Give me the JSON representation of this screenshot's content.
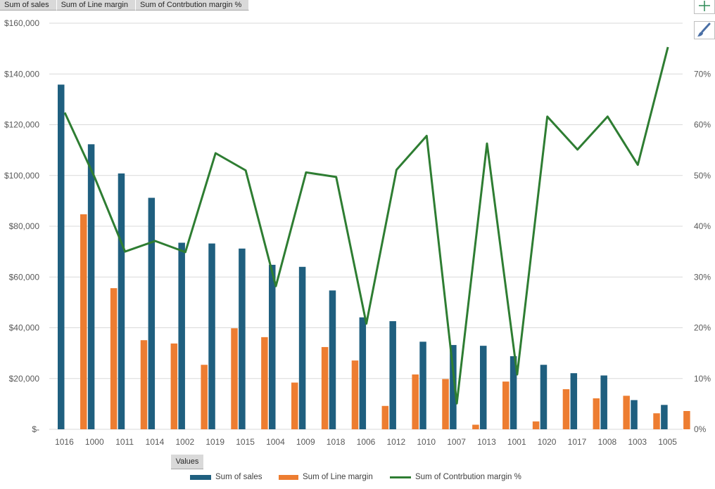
{
  "field_buttons": [
    "Sum of sales",
    "Sum of Line margin",
    "Sum of Contrbution margin %"
  ],
  "values_button": "Values",
  "side_buttons": {
    "add": "plus-icon",
    "style": "paintbrush-icon"
  },
  "colors": {
    "sales": "#1f5f7f",
    "margin": "#ed7d31",
    "contribution": "#2e7d32",
    "grid": "#d9d9d9",
    "axis_text": "#595959"
  },
  "legend": [
    "Sum of sales",
    "Sum of Line margin",
    "Sum of Contrbution margin %"
  ],
  "chart_data": {
    "type": "bar",
    "title": "",
    "xlabel": "",
    "ylabel": "",
    "categories": [
      "1016",
      "1000",
      "1011",
      "1014",
      "1002",
      "1019",
      "1015",
      "1004",
      "1009",
      "1018",
      "1006",
      "1012",
      "1010",
      "1007",
      "1013",
      "1001",
      "1020",
      "1017",
      "1008",
      "1003",
      "1005"
    ],
    "series": [
      {
        "name": "Sum of sales",
        "type": "bar",
        "axis": "left",
        "values": [
          135800,
          112300,
          100800,
          91200,
          73500,
          73200,
          71200,
          64800,
          64000,
          54700,
          44100,
          42600,
          34500,
          33200,
          32900,
          28800,
          25400,
          22100,
          21200,
          11500,
          9600
        ]
      },
      {
        "name": "Sum of Line margin",
        "type": "bar",
        "axis": "left",
        "values": [
          84700,
          55600,
          35100,
          33800,
          25400,
          39800,
          36300,
          18400,
          32400,
          27100,
          9200,
          21600,
          19800,
          1800,
          18800,
          3100,
          15800,
          12200,
          13200,
          6300,
          7200
        ]
      },
      {
        "name": "Sum of Contrbution margin %",
        "type": "line",
        "axis": "right",
        "values": [
          62.4,
          49.5,
          35.0,
          37.1,
          34.9,
          54.4,
          51.0,
          28.2,
          50.6,
          49.7,
          20.8,
          51.1,
          57.8,
          5.1,
          56.3,
          10.8,
          61.6,
          55.1,
          61.6,
          52.1,
          75.3
        ]
      }
    ],
    "y_left": {
      "min": 0,
      "max": 160000,
      "ticks": [
        "$-",
        "$20,000",
        "$40,000",
        "$60,000",
        "$80,000",
        "$100,000",
        "$120,000",
        "$140,000",
        "$160,000"
      ]
    },
    "y_right": {
      "min": 0,
      "max": 80,
      "ticks": [
        "0%",
        "10%",
        "20%",
        "30%",
        "40%",
        "50%",
        "60%",
        "70%"
      ]
    },
    "grid": true,
    "legend_position": "bottom"
  }
}
